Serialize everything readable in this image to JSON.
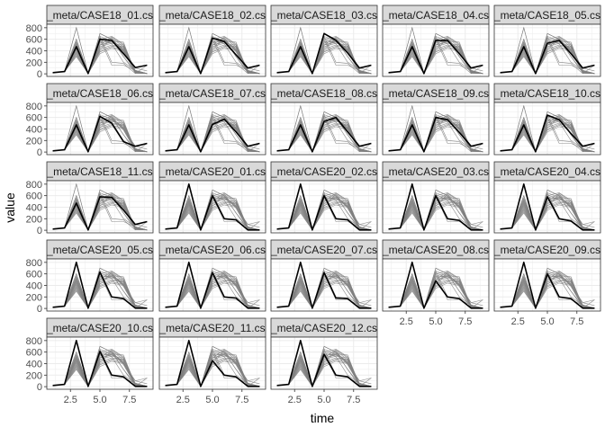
{
  "chart_data": {
    "type": "line",
    "facet_layout": "wrap, 5 columns x 5 rows",
    "xlabel": "time",
    "ylabel": "value",
    "xlim": [
      0.5,
      9.5
    ],
    "ylim": [
      -45,
      860
    ],
    "x_ticks": [
      2.5,
      5.0,
      7.5
    ],
    "x_tick_labels": [
      "2.5",
      "5.0",
      "7.5"
    ],
    "y_ticks": [
      0,
      200,
      400,
      600,
      800
    ],
    "y_tick_labels": [
      "0",
      "200",
      "400",
      "600",
      "800"
    ],
    "grid": true,
    "facet_strip_color": "#d9d9d9",
    "panel_border_color": "#333333",
    "grid_color": "#ebebeb",
    "highlight_color": "#000000",
    "background_series_color": "#7f7f7f",
    "x": [
      1,
      2,
      3,
      4,
      5,
      6,
      7,
      8,
      9
    ],
    "panels": [
      {
        "label": "_meta/CASE18_01.cs",
        "highlight": [
          20,
          40,
          470,
          5,
          600,
          580,
          350,
          110,
          150
        ]
      },
      {
        "label": "_meta/CASE18_02.cs",
        "highlight": [
          20,
          40,
          470,
          5,
          620,
          560,
          330,
          100,
          150
        ]
      },
      {
        "label": "_meta/CASE18_03.cs",
        "highlight": [
          20,
          40,
          470,
          5,
          700,
          580,
          360,
          100,
          150
        ]
      },
      {
        "label": "_meta/CASE18_04.cs",
        "highlight": [
          20,
          40,
          470,
          5,
          580,
          580,
          350,
          100,
          150
        ]
      },
      {
        "label": "_meta/CASE18_05.cs",
        "highlight": [
          20,
          40,
          470,
          5,
          530,
          580,
          350,
          100,
          150
        ]
      },
      {
        "label": "_meta/CASE18_06.cs",
        "highlight": [
          20,
          40,
          470,
          5,
          620,
          500,
          180,
          100,
          150
        ]
      },
      {
        "label": "_meta/CASE18_07.cs",
        "highlight": [
          20,
          40,
          470,
          5,
          480,
          570,
          350,
          100,
          150
        ]
      },
      {
        "label": "_meta/CASE18_08.cs",
        "highlight": [
          20,
          40,
          470,
          5,
          530,
          600,
          350,
          100,
          150
        ]
      },
      {
        "label": "_meta/CASE18_09.cs",
        "highlight": [
          20,
          40,
          470,
          5,
          600,
          560,
          340,
          100,
          150
        ]
      },
      {
        "label": "_meta/CASE18_10.cs",
        "highlight": [
          20,
          40,
          470,
          5,
          640,
          560,
          320,
          100,
          150
        ]
      },
      {
        "label": "_meta/CASE18_11.cs",
        "highlight": [
          20,
          40,
          470,
          5,
          580,
          570,
          350,
          100,
          150
        ]
      },
      {
        "label": "_meta/CASE20_01.cs",
        "highlight": [
          20,
          40,
          800,
          5,
          600,
          200,
          180,
          5,
          5
        ]
      },
      {
        "label": "_meta/CASE20_02.cs",
        "highlight": [
          20,
          40,
          800,
          5,
          600,
          200,
          180,
          5,
          5
        ]
      },
      {
        "label": "_meta/CASE20_03.cs",
        "highlight": [
          20,
          40,
          800,
          5,
          600,
          200,
          170,
          5,
          5
        ]
      },
      {
        "label": "_meta/CASE20_04.cs",
        "highlight": [
          20,
          40,
          800,
          5,
          580,
          200,
          160,
          5,
          5
        ]
      },
      {
        "label": "_meta/CASE20_05.cs",
        "highlight": [
          20,
          40,
          800,
          5,
          630,
          200,
          170,
          5,
          5
        ]
      },
      {
        "label": "_meta/CASE20_06.cs",
        "highlight": [
          20,
          40,
          800,
          5,
          620,
          200,
          180,
          5,
          5
        ]
      },
      {
        "label": "_meta/CASE20_07.cs",
        "highlight": [
          20,
          40,
          800,
          5,
          620,
          180,
          170,
          5,
          5
        ]
      },
      {
        "label": "_meta/CASE20_08.cs",
        "highlight": [
          20,
          40,
          800,
          5,
          480,
          200,
          170,
          5,
          5
        ]
      },
      {
        "label": "_meta/CASE20_09.cs",
        "highlight": [
          20,
          40,
          800,
          5,
          600,
          200,
          170,
          5,
          5
        ]
      },
      {
        "label": "_meta/CASE20_10.cs",
        "highlight": [
          20,
          40,
          800,
          5,
          610,
          200,
          170,
          5,
          5
        ]
      },
      {
        "label": "_meta/CASE20_11.cs",
        "highlight": [
          20,
          40,
          800,
          5,
          450,
          200,
          170,
          5,
          5
        ]
      },
      {
        "label": "_meta/CASE20_12.cs",
        "highlight": [
          20,
          40,
          800,
          5,
          560,
          200,
          170,
          5,
          5
        ]
      }
    ],
    "background_series": [
      [
        20,
        40,
        800,
        5,
        700,
        600,
        400,
        100,
        150
      ],
      [
        20,
        40,
        800,
        5,
        650,
        200,
        180,
        5,
        150
      ],
      [
        20,
        40,
        600,
        5,
        600,
        150,
        150,
        60,
        5
      ],
      [
        20,
        40,
        550,
        5,
        650,
        570,
        550,
        10,
        5
      ],
      [
        20,
        40,
        520,
        5,
        700,
        600,
        300,
        10,
        10
      ],
      [
        20,
        40,
        500,
        5,
        550,
        560,
        400,
        100,
        50
      ],
      [
        20,
        40,
        480,
        5,
        500,
        640,
        500,
        20,
        5
      ],
      [
        20,
        40,
        450,
        5,
        450,
        620,
        380,
        30,
        5
      ],
      [
        20,
        40,
        420,
        5,
        420,
        600,
        300,
        40,
        5
      ],
      [
        20,
        40,
        400,
        5,
        500,
        560,
        450,
        60,
        5
      ],
      [
        20,
        40,
        380,
        5,
        470,
        530,
        500,
        50,
        5
      ],
      [
        20,
        40,
        360,
        5,
        430,
        500,
        480,
        50,
        5
      ],
      [
        20,
        40,
        340,
        5,
        400,
        480,
        460,
        40,
        5
      ],
      [
        20,
        40,
        320,
        5,
        380,
        460,
        420,
        30,
        5
      ],
      [
        20,
        40,
        300,
        5,
        350,
        440,
        400,
        20,
        5
      ],
      [
        20,
        40,
        560,
        5,
        600,
        650,
        520,
        50,
        5
      ],
      [
        20,
        40,
        520,
        5,
        560,
        620,
        470,
        40,
        5
      ],
      [
        20,
        40,
        470,
        5,
        530,
        580,
        430,
        30,
        5
      ],
      [
        20,
        40,
        440,
        5,
        500,
        550,
        420,
        20,
        5
      ],
      [
        20,
        40,
        600,
        5,
        620,
        520,
        200,
        60,
        5
      ]
    ]
  }
}
